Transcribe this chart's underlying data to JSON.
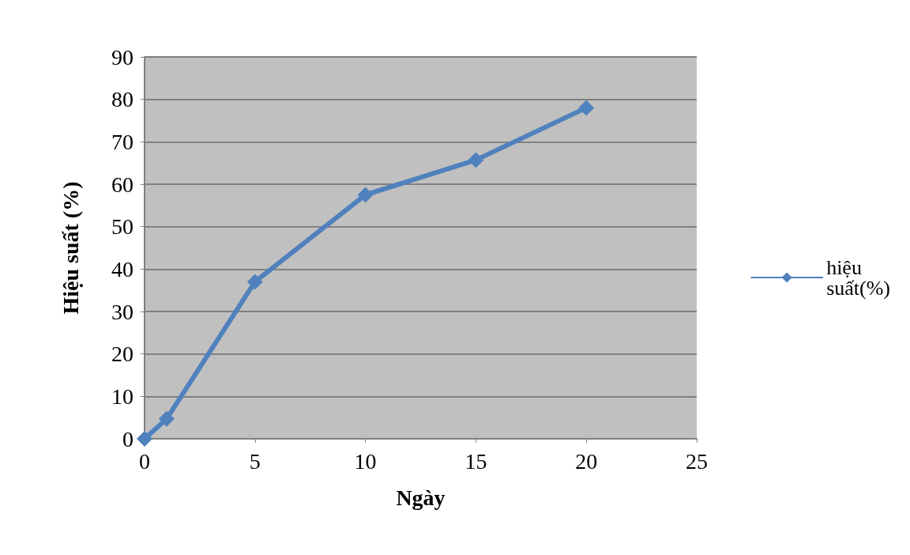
{
  "chart_data": {
    "type": "line",
    "xlabel": "Ngày",
    "ylabel": "Hiệu suất (%)",
    "x": [
      0,
      1,
      5,
      10,
      15,
      20
    ],
    "series": [
      {
        "name": "hiệu suất(%)",
        "color": "#4f81bd",
        "values": [
          0,
          4.7,
          37,
          57.5,
          65.7,
          78
        ]
      }
    ],
    "xlim": [
      0,
      25
    ],
    "xticks": [
      0,
      5,
      10,
      15,
      20,
      25
    ],
    "ylim": [
      0,
      90
    ],
    "yticks": [
      0,
      10,
      20,
      30,
      40,
      50,
      60,
      70,
      80,
      90
    ],
    "grid": "y",
    "legend": "right",
    "marker": "diamond",
    "line_style": "solid"
  }
}
